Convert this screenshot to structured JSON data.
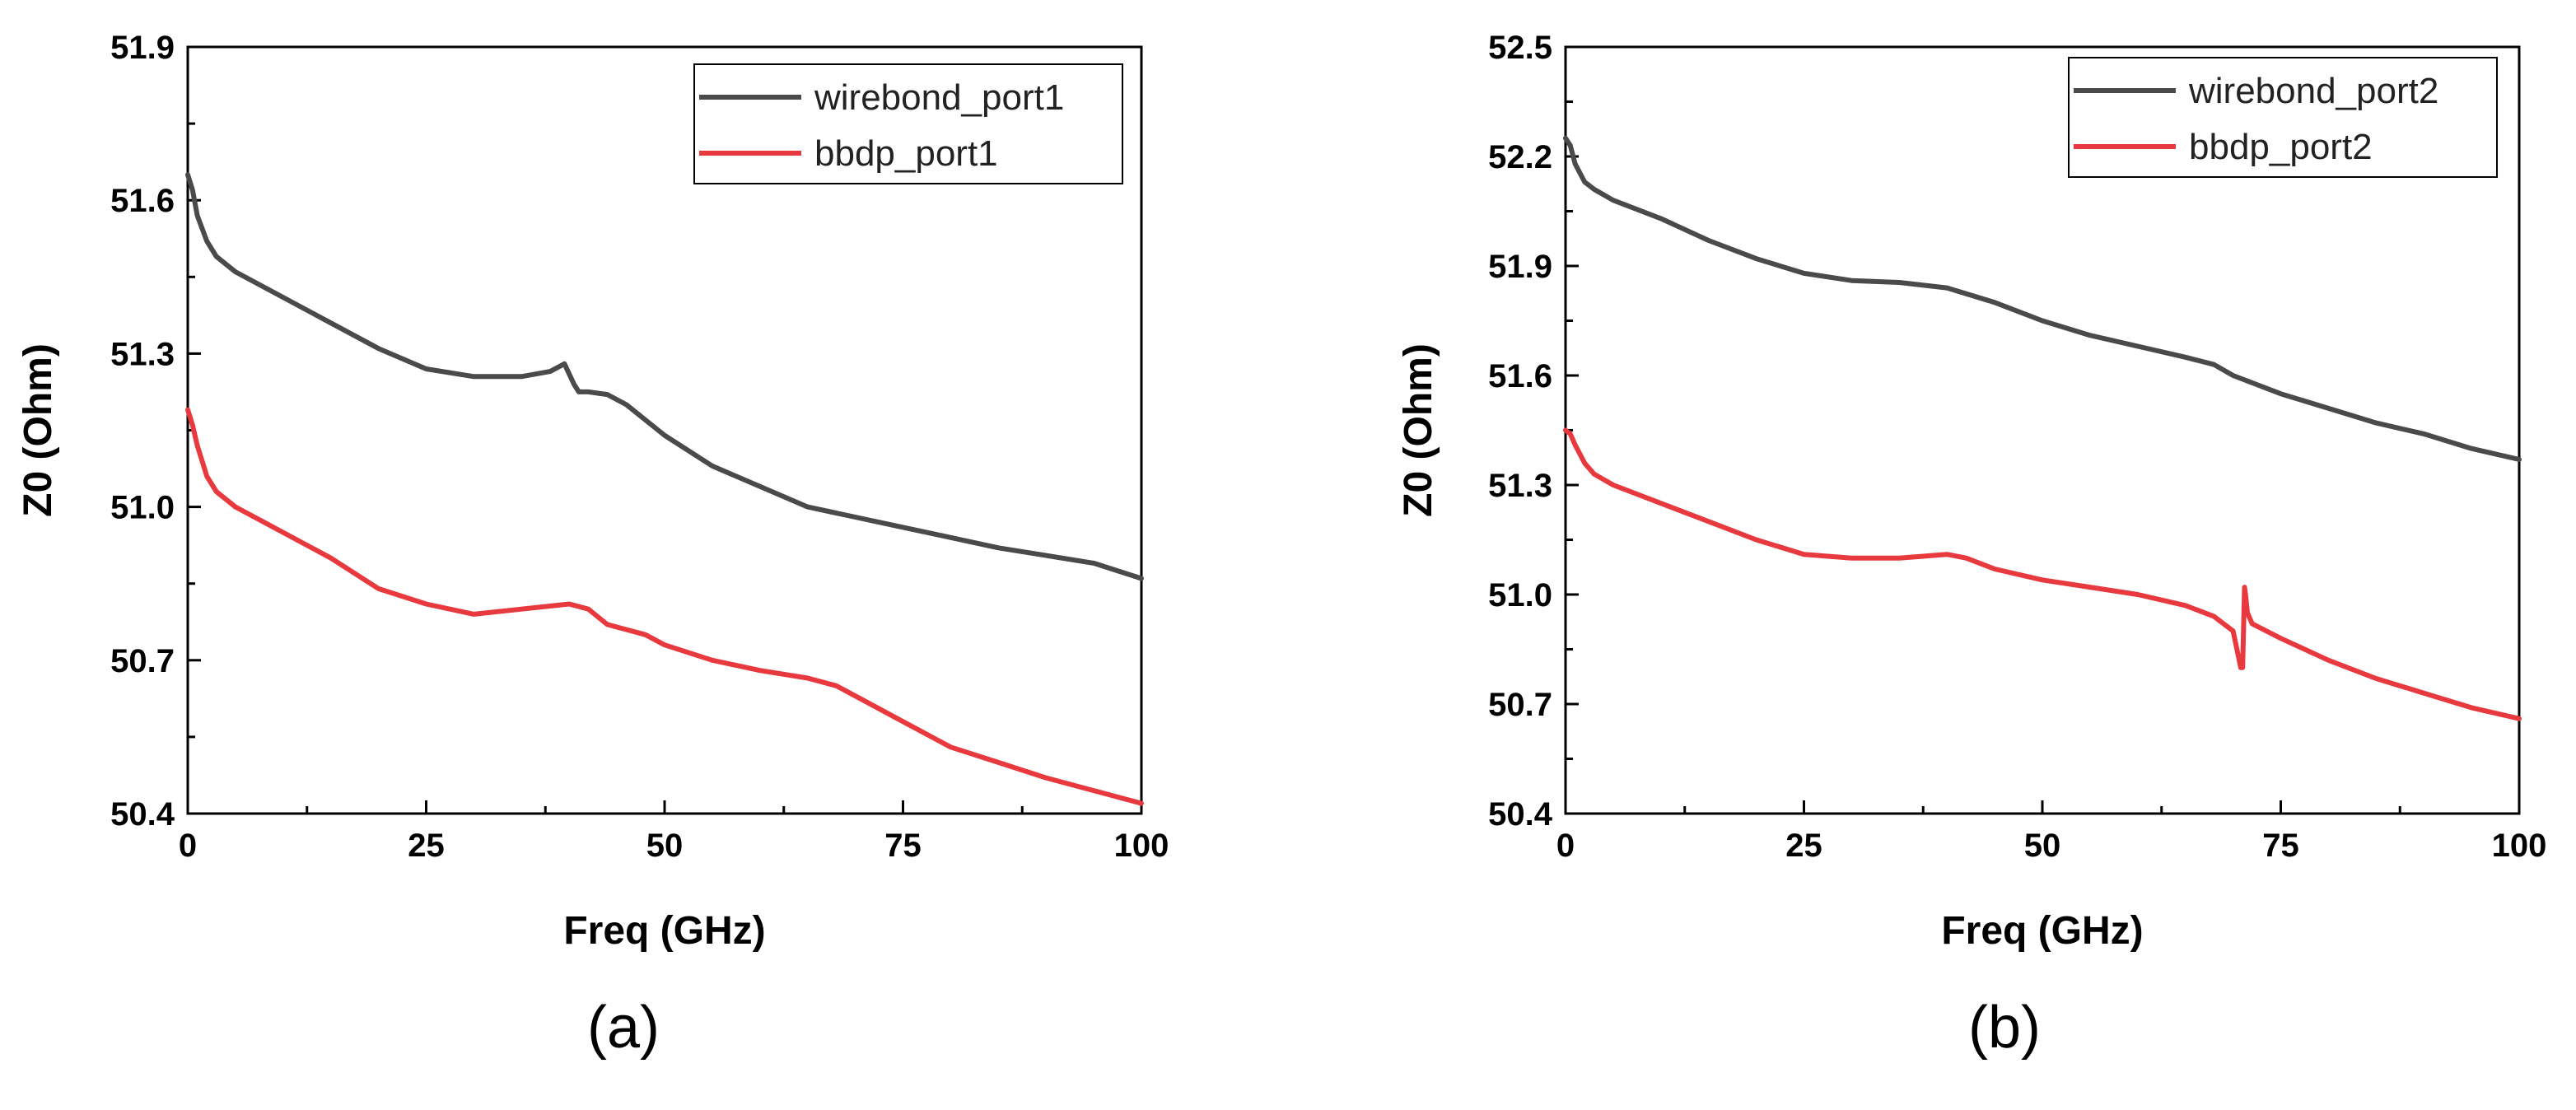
{
  "chart_data": [
    {
      "type": "line",
      "panel_label": "(a)",
      "xlabel": "Freq (GHz)",
      "ylabel": "Z0 (Ohm)",
      "xlim": [
        0,
        100
      ],
      "ylim": [
        50.4,
        51.9
      ],
      "xticks": [
        "0",
        "25",
        "50",
        "75",
        "100"
      ],
      "yticks": [
        "50.4",
        "50.7",
        "51.0",
        "51.3",
        "51.6",
        "51.9"
      ],
      "legend_position": "top-right",
      "series": [
        {
          "name": "wirebond_port1",
          "color": "#4a4a4a",
          "x": [
            0,
            0.5,
            1,
            2,
            3,
            5,
            10,
            15,
            20,
            25,
            30,
            35,
            38,
            39.5,
            40.5,
            41,
            42,
            44,
            46,
            48,
            50,
            55,
            60,
            65,
            70,
            75,
            80,
            85,
            90,
            95,
            100
          ],
          "y": [
            51.65,
            51.62,
            51.57,
            51.52,
            51.49,
            51.46,
            51.41,
            51.36,
            51.31,
            51.27,
            51.255,
            51.255,
            51.265,
            51.28,
            51.24,
            51.225,
            51.225,
            51.22,
            51.2,
            51.17,
            51.14,
            51.08,
            51.04,
            51.0,
            50.98,
            50.96,
            50.94,
            50.92,
            50.905,
            50.89,
            50.86
          ]
        },
        {
          "name": "bbdp_port1",
          "color": "#e8393e",
          "x": [
            0,
            0.5,
            1,
            2,
            3,
            5,
            10,
            15,
            20,
            25,
            30,
            35,
            40,
            42,
            44,
            46,
            48,
            50,
            55,
            60,
            65,
            68,
            70,
            75,
            80,
            85,
            90,
            95,
            100
          ],
          "y": [
            51.19,
            51.16,
            51.12,
            51.06,
            51.03,
            51.0,
            50.95,
            50.9,
            50.84,
            50.81,
            50.79,
            50.8,
            50.81,
            50.8,
            50.77,
            50.76,
            50.75,
            50.73,
            50.7,
            50.68,
            50.665,
            50.65,
            50.63,
            50.58,
            50.53,
            50.5,
            50.47,
            50.445,
            50.42
          ]
        }
      ]
    },
    {
      "type": "line",
      "panel_label": "(b)",
      "xlabel": "Freq (GHz)",
      "ylabel": "Z0 (Ohm)",
      "xlim": [
        0,
        100
      ],
      "ylim": [
        50.4,
        52.5
      ],
      "xticks": [
        "0",
        "25",
        "50",
        "75",
        "100"
      ],
      "yticks": [
        "50.4",
        "50.7",
        "51.0",
        "51.3",
        "51.6",
        "51.9",
        "52.2",
        "52.5"
      ],
      "legend_position": "top-right",
      "series": [
        {
          "name": "wirebond_port2",
          "color": "#4a4a4a",
          "x": [
            0,
            0.5,
            1,
            2,
            3,
            5,
            10,
            15,
            20,
            25,
            30,
            35,
            40,
            45,
            50,
            55,
            60,
            65,
            68,
            70,
            75,
            80,
            85,
            90,
            95,
            100
          ],
          "y": [
            52.25,
            52.23,
            52.18,
            52.13,
            52.11,
            52.08,
            52.03,
            51.97,
            51.92,
            51.88,
            51.86,
            51.855,
            51.84,
            51.8,
            51.75,
            51.71,
            51.68,
            51.65,
            51.63,
            51.6,
            51.55,
            51.51,
            51.47,
            51.44,
            51.4,
            51.37
          ]
        },
        {
          "name": "bbdp_port2",
          "color": "#e8393e",
          "x": [
            0,
            0.5,
            1,
            2,
            3,
            5,
            10,
            15,
            20,
            25,
            30,
            35,
            40,
            42,
            45,
            50,
            55,
            60,
            65,
            68,
            70,
            70.8,
            71,
            71.2,
            71.3,
            71.5,
            72,
            75,
            80,
            85,
            90,
            95,
            100
          ],
          "y": [
            51.45,
            51.44,
            51.41,
            51.36,
            51.33,
            51.3,
            51.25,
            51.2,
            51.15,
            51.11,
            51.1,
            51.1,
            51.11,
            51.1,
            51.07,
            51.04,
            51.02,
            51.0,
            50.97,
            50.94,
            50.9,
            50.8,
            50.8,
            51.02,
            51.0,
            50.95,
            50.92,
            50.88,
            50.82,
            50.77,
            50.73,
            50.69,
            50.66
          ]
        }
      ]
    }
  ]
}
